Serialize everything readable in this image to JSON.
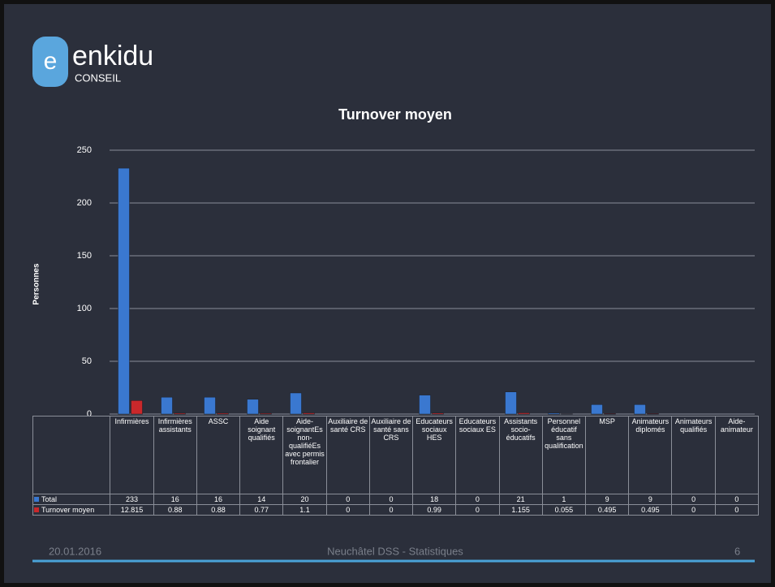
{
  "logo": {
    "name": "enkidu",
    "sub": "CONSEIL"
  },
  "chart_data": {
    "type": "bar",
    "title": "Turnover moyen",
    "ylabel": "Personnes",
    "categories": [
      "Infirmières",
      "Infirmières assistants",
      "ASSC",
      "Aide soignant qualifiés",
      "Aide-soignantEs non-qualifiéEs avec permis frontalier",
      "Auxiliaire de santé CRS",
      "Auxiliaire de santé sans CRS",
      "Educateurs sociaux HES",
      "Educateurs sociaux ES",
      "Assistants socio-éducatifs",
      "Personnel éducatif sans qualification",
      "MSP",
      "Animateurs diplomés",
      "Animateurs qualifiés",
      "Aide-animateur"
    ],
    "series": [
      {
        "name": "Total",
        "color": "#3a78d0",
        "values": [
          233,
          16,
          16,
          14,
          20,
          0,
          0,
          18,
          0,
          21,
          1,
          9,
          9,
          0,
          0
        ]
      },
      {
        "name": "Turnover moyen",
        "color": "#c9282b",
        "values": [
          12.815,
          0.88,
          0.88,
          0.77,
          1.1,
          0,
          0,
          0.99,
          0,
          1.155,
          0.055,
          0.495,
          0.495,
          0,
          0
        ]
      }
    ],
    "ylim": [
      0,
      250
    ],
    "yticks": [
      0,
      50,
      100,
      150,
      200,
      250
    ],
    "grid": true
  },
  "footer": {
    "date": "20.01.2016",
    "center": "Neuchâtel DSS - Statistiques",
    "page": "6"
  }
}
